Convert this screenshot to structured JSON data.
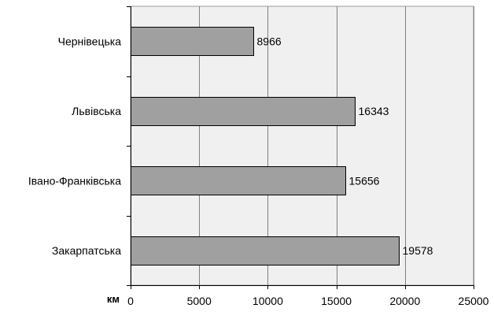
{
  "chart_data": {
    "type": "bar",
    "orientation": "horizontal",
    "categories": [
      "Чернівецька",
      "Львівська",
      "Івано-Франківська",
      "Закарпатська"
    ],
    "values": [
      8966,
      16343,
      15656,
      19578
    ],
    "data_labels": [
      "8966",
      "16343",
      "15656",
      "19578"
    ],
    "xlabel": "км",
    "ylabel": "",
    "title": "",
    "xlim": [
      0,
      25000
    ],
    "xticks": [
      0,
      5000,
      10000,
      15000,
      20000,
      25000
    ],
    "xtick_labels": [
      "0",
      "5000",
      "10000",
      "15000",
      "20000",
      "25000"
    ],
    "grid": "vertical",
    "legend": "none",
    "colors": {
      "plot_background": "#f0f0f0",
      "bar_fill": "#a0a0a0",
      "bar_stroke": "#000000",
      "gridline": "#808080"
    }
  }
}
